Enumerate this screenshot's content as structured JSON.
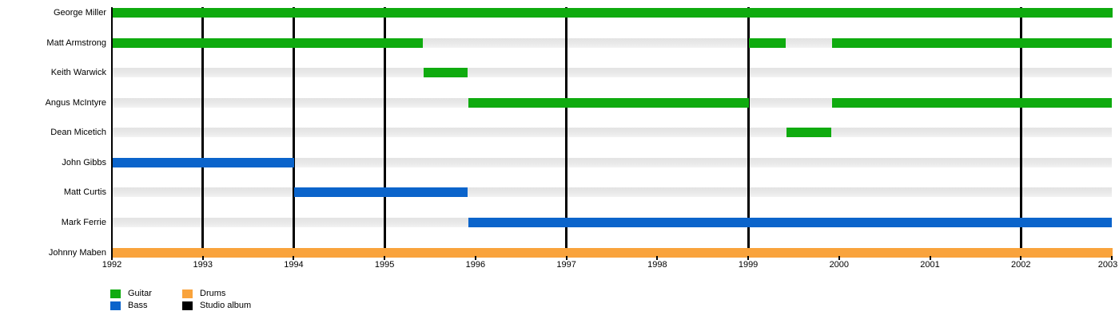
{
  "chart_data": {
    "type": "timeline",
    "description": "Band members timeline (gantt-style), rows are members, bars show tenure by instrument, vertical black lines mark studio albums",
    "x_axis": {
      "min": 1992,
      "max": 2003,
      "ticks": [
        1992,
        1993,
        1994,
        1995,
        1996,
        1997,
        1998,
        1999,
        2000,
        2001,
        2002,
        2003
      ]
    },
    "rows": [
      {
        "label": "George Miller",
        "instrument": "Guitar",
        "segments": [
          [
            1992,
            2003
          ]
        ]
      },
      {
        "label": "Matt Armstrong",
        "instrument": "Guitar",
        "segments": [
          [
            1992,
            1995.42
          ],
          [
            1999,
            1999.41
          ],
          [
            1999.91,
            2003
          ]
        ]
      },
      {
        "label": "Keith Warwick",
        "instrument": "Guitar",
        "segments": [
          [
            1995.42,
            1995.91
          ]
        ]
      },
      {
        "label": "Angus McIntyre",
        "instrument": "Guitar",
        "segments": [
          [
            1995.91,
            1999
          ],
          [
            1999.91,
            2003
          ]
        ]
      },
      {
        "label": "Dean Micetich",
        "instrument": "Guitar",
        "segments": [
          [
            1999.41,
            1999.91
          ]
        ]
      },
      {
        "label": "John Gibbs",
        "instrument": "Bass",
        "segments": [
          [
            1992,
            1994
          ]
        ]
      },
      {
        "label": "Matt Curtis",
        "instrument": "Bass",
        "segments": [
          [
            1994,
            1995.91
          ]
        ]
      },
      {
        "label": "Mark Ferrie",
        "instrument": "Bass",
        "segments": [
          [
            1995.91,
            2003
          ]
        ]
      },
      {
        "label": "Johnny Maben",
        "instrument": "Drums",
        "segments": [
          [
            1992,
            2003
          ]
        ]
      }
    ],
    "album_lines": [
      1993,
      1994,
      1995,
      1997,
      1999,
      2002
    ],
    "colors": {
      "Guitar": "#0fab0f",
      "Bass": "#0b64cb",
      "Drums": "#f9a33c",
      "album_line": "#000000",
      "track": "#e9e9e9"
    },
    "legend": {
      "columns": [
        [
          {
            "label": "Guitar",
            "color": "#0fab0f",
            "name": "guitar"
          },
          {
            "label": "Bass",
            "color": "#0b64cb",
            "name": "bass"
          }
        ],
        [
          {
            "label": "Drums",
            "color": "#f9a33c",
            "name": "drums"
          },
          {
            "label": "Studio album",
            "color": "#000000",
            "name": "studio-album"
          }
        ]
      ]
    }
  }
}
